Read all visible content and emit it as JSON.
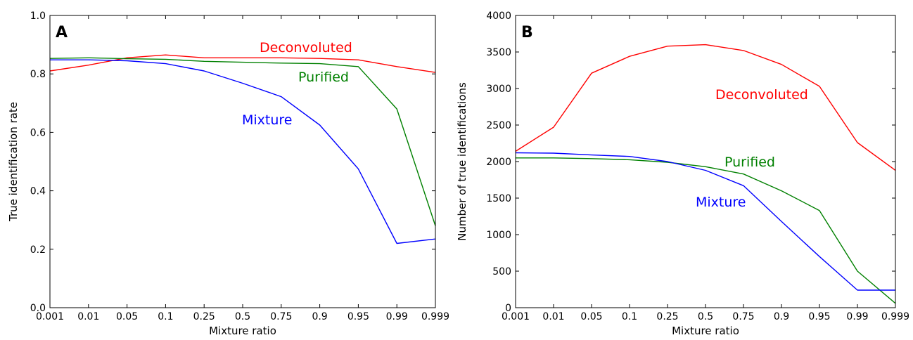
{
  "chart_data": [
    {
      "type": "line",
      "panel_label": "A",
      "xlabel": "Mixture ratio",
      "ylabel": "True identification rate",
      "categories": [
        "0.001",
        "0.01",
        "0.05",
        "0.1",
        "0.25",
        "0.5",
        "0.75",
        "0.9",
        "0.95",
        "0.99",
        "0.999"
      ],
      "yticks": [
        "0.0",
        "0.2",
        "0.4",
        "0.6",
        "0.8",
        "1.0"
      ],
      "ylim": [
        0,
        1
      ],
      "grid": false,
      "series": [
        {
          "name": "Deconvoluted",
          "color": "#ff0000",
          "values": [
            0.81,
            0.83,
            0.855,
            0.865,
            0.855,
            0.855,
            0.855,
            0.853,
            0.848,
            0.825,
            0.805
          ]
        },
        {
          "name": "Purified",
          "color": "#008000",
          "values": [
            0.853,
            0.855,
            0.852,
            0.85,
            0.843,
            0.84,
            0.837,
            0.835,
            0.825,
            0.68,
            0.28
          ]
        },
        {
          "name": "Mixture",
          "color": "#0000ff",
          "values": [
            0.848,
            0.848,
            0.845,
            0.835,
            0.81,
            0.768,
            0.722,
            0.625,
            0.475,
            0.22,
            0.235
          ]
        }
      ]
    },
    {
      "type": "line",
      "panel_label": "B",
      "xlabel": "Mixture ratio",
      "ylabel": "Number of true identifications",
      "categories": [
        "0.001",
        "0.01",
        "0.05",
        "0.1",
        "0.25",
        "0.5",
        "0.75",
        "0.9",
        "0.95",
        "0.99",
        "0.999"
      ],
      "yticks": [
        "0",
        "500",
        "1000",
        "1500",
        "2000",
        "2500",
        "3000",
        "3500",
        "4000"
      ],
      "ylim": [
        0,
        4000
      ],
      "grid": false,
      "series": [
        {
          "name": "Deconvoluted",
          "color": "#ff0000",
          "values": [
            2140,
            2470,
            3210,
            3440,
            3580,
            3600,
            3520,
            3330,
            3030,
            2260,
            1880
          ]
        },
        {
          "name": "Purified",
          "color": "#008000",
          "values": [
            2050,
            2050,
            2040,
            2025,
            1990,
            1930,
            1830,
            1600,
            1330,
            500,
            60
          ]
        },
        {
          "name": "Mixture",
          "color": "#0000ff",
          "values": [
            2120,
            2115,
            2090,
            2070,
            2000,
            1880,
            1670,
            1180,
            700,
            240,
            240
          ]
        }
      ]
    }
  ]
}
